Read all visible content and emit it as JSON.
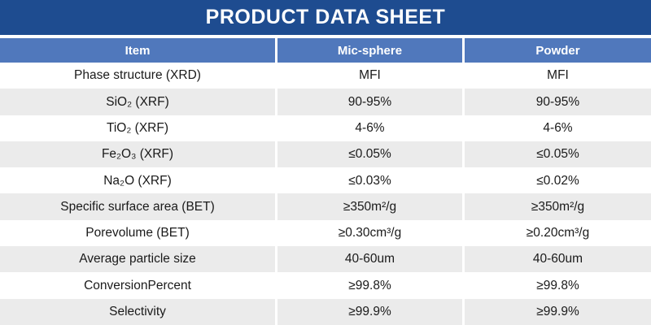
{
  "title": "PRODUCT DATA SHEET",
  "colors": {
    "title_bar": "#1e4c90",
    "header_row": "#5078bc",
    "shaded_row": "#ebebeb",
    "body_text": "#1a1a1a",
    "header_text": "#ffffff"
  },
  "table": {
    "headers": [
      "Item",
      "Mic-sphere",
      "Powder"
    ],
    "rows": [
      {
        "item": "Phase structure (XRD)",
        "mic_sphere": "MFI",
        "powder": "MFI"
      },
      {
        "item": "SiO₂ (XRF)",
        "mic_sphere": "90-95%",
        "powder": "90-95%"
      },
      {
        "item": "TiO₂ (XRF)",
        "mic_sphere": "4-6%",
        "powder": "4-6%"
      },
      {
        "item": "Fe₂O₃ (XRF)",
        "mic_sphere": "≤0.05%",
        "powder": "≤0.05%"
      },
      {
        "item": "Na₂O (XRF)",
        "mic_sphere": "≤0.03%",
        "powder": "≤0.02%"
      },
      {
        "item": "Specific surface area (BET)",
        "mic_sphere": "≥350m²/g",
        "powder": "≥350m²/g"
      },
      {
        "item": "Porevolume (BET)",
        "mic_sphere": "≥0.30cm³/g",
        "powder": "≥0.20cm³/g"
      },
      {
        "item": "Average particle size",
        "mic_sphere": "40-60um",
        "powder": "40-60um"
      },
      {
        "item": "ConversionPercent",
        "mic_sphere": "≥99.8%",
        "powder": "≥99.8%"
      },
      {
        "item": "Selectivity",
        "mic_sphere": "≥99.9%",
        "powder": "≥99.9%"
      }
    ]
  }
}
